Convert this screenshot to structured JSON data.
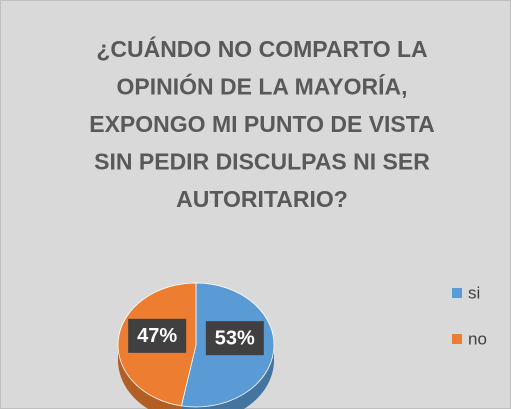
{
  "chart_data": {
    "type": "pie",
    "title": [
      "¿CUÁNDO NO COMPARTO LA",
      "OPINIÓN DE LA MAYORÍA,",
      "EXPONGO MI PUNTO DE VISTA",
      "SIN PEDIR DISCULPAS NI SER",
      "AUTORITARIO?"
    ],
    "categories": [
      "si",
      "no"
    ],
    "values": [
      53,
      47
    ],
    "value_labels": [
      "53%",
      "47%"
    ],
    "colors": [
      "#5b9bd5",
      "#ed7d31"
    ],
    "legend": "right"
  }
}
